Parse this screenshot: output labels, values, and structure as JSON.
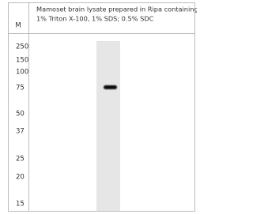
{
  "header": {
    "marker_label": "M",
    "caption_lines": [
      "Mamoset brain lysate prepared in Ripa containing",
      "1% Triton X-100, 1% SDS; 0.5% SDC"
    ]
  },
  "markers": [
    250,
    150,
    100,
    75,
    50,
    37,
    25,
    20,
    15
  ]
}
